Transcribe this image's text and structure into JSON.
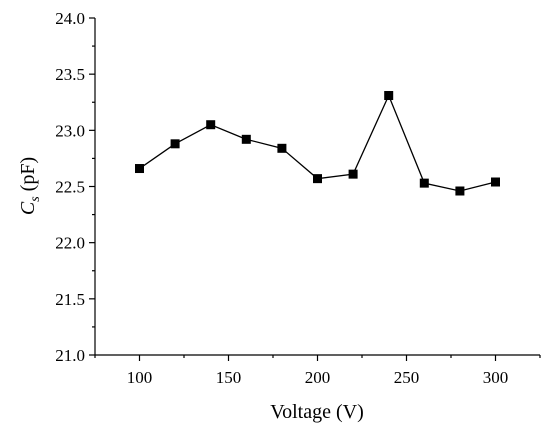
{
  "chart_data": {
    "type": "line",
    "xlabel": "Voltage (V)",
    "ylabel_main": "C",
    "ylabel_sub": "s",
    "ylabel_unit": " (pF)",
    "xlim": [
      75,
      325
    ],
    "ylim": [
      21.0,
      24.0
    ],
    "xticks": [
      100,
      150,
      200,
      250,
      300
    ],
    "xtick_labels": [
      "100",
      "150",
      "200",
      "250",
      "300"
    ],
    "yticks": [
      21.0,
      21.5,
      22.0,
      22.5,
      23.0,
      23.5,
      24.0
    ],
    "ytick_labels": [
      "21.0",
      "21.5",
      "22.0",
      "22.5",
      "23.0",
      "23.5",
      "24.0"
    ],
    "grid": false,
    "series": [
      {
        "marker": "square",
        "color": "#000000",
        "x": [
          100,
          120,
          140,
          160,
          180,
          200,
          220,
          240,
          260,
          280,
          300
        ],
        "y": [
          22.66,
          22.88,
          23.05,
          22.92,
          22.84,
          22.57,
          22.61,
          23.31,
          22.53,
          22.46,
          22.54
        ]
      }
    ]
  }
}
